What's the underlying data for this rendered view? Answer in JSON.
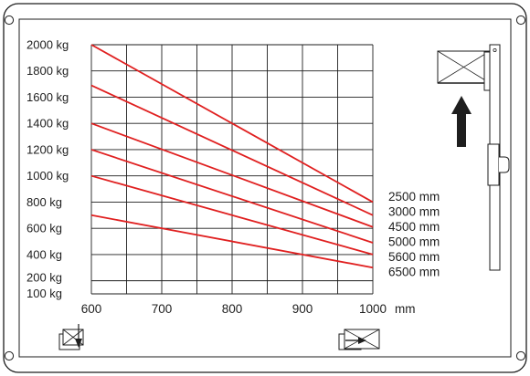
{
  "chart_data": {
    "type": "line",
    "xlabel": "",
    "ylabel": "",
    "x_unit": "mm",
    "xlim": [
      600,
      1000
    ],
    "ylim": [
      100,
      2000
    ],
    "x_ticks": [
      {
        "value": 600,
        "label": "600"
      },
      {
        "value": 700,
        "label": "700"
      },
      {
        "value": 800,
        "label": "800"
      },
      {
        "value": 900,
        "label": "900"
      },
      {
        "value": 1000,
        "label": "1000"
      }
    ],
    "x_unit_label": "mm",
    "y_ticks": [
      {
        "value": 2000,
        "label": "2000 kg"
      },
      {
        "value": 1800,
        "label": "1800 kg"
      },
      {
        "value": 1600,
        "label": "1600 kg"
      },
      {
        "value": 1400,
        "label": "1400 kg"
      },
      {
        "value": 1200,
        "label": "1200 kg"
      },
      {
        "value": 1000,
        "label": "1000 kg"
      },
      {
        "value": 800,
        "label": "800 kg"
      },
      {
        "value": 600,
        "label": "600 kg"
      },
      {
        "value": 400,
        "label": "400 kg"
      },
      {
        "value": 200,
        "label": "200 kg"
      },
      {
        "value": 100,
        "label": "100 kg"
      }
    ],
    "grid": true,
    "series_color": "#e02020",
    "series": [
      {
        "name": "2500 mm",
        "x": [
          600,
          1000
        ],
        "y": [
          2000,
          800
        ]
      },
      {
        "name": "3000 mm",
        "x": [
          600,
          1000
        ],
        "y": [
          1690,
          700
        ]
      },
      {
        "name": "4500 mm",
        "x": [
          600,
          1000
        ],
        "y": [
          1400,
          610
        ]
      },
      {
        "name": "5000 mm",
        "x": [
          600,
          1000
        ],
        "y": [
          1200,
          490
        ]
      },
      {
        "name": "5600 mm",
        "x": [
          600,
          1000
        ],
        "y": [
          1000,
          400
        ]
      },
      {
        "name": "6500 mm",
        "x": [
          600,
          1000
        ],
        "y": [
          700,
          300
        ]
      }
    ]
  },
  "icons": {
    "load_center_icon": "box-down-arrow-icon",
    "load_offset_icon": "box-right-arrow-icon",
    "lift_diagram_icon": "mast-with-load-icon",
    "lift_arrow_icon": "up-arrow-icon"
  }
}
